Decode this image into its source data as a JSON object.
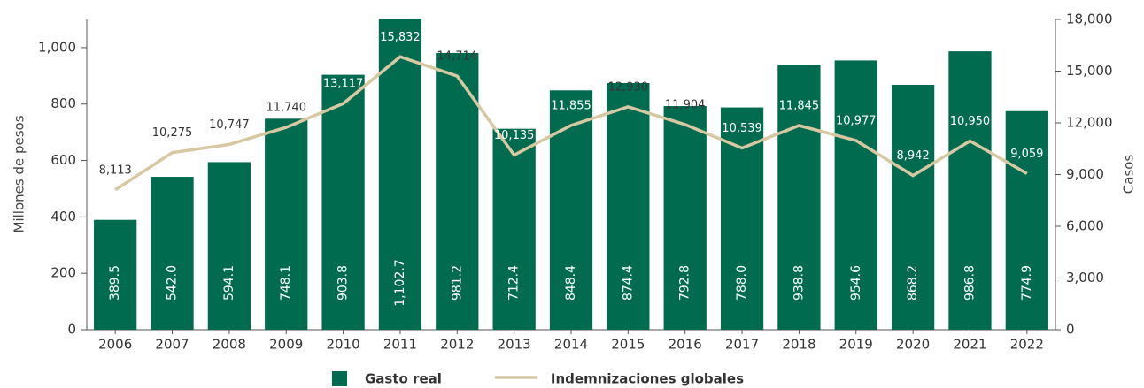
{
  "chart_data": {
    "type": "bar",
    "categories": [
      "2006",
      "2007",
      "2008",
      "2009",
      "2010",
      "2011",
      "2012",
      "2013",
      "2014",
      "2015",
      "2016",
      "2017",
      "2018",
      "2019",
      "2020",
      "2021",
      "2022"
    ],
    "series": [
      {
        "name": "Gasto real",
        "type": "bar",
        "color": "#006b4f",
        "values": [
          389.5,
          542.0,
          594.1,
          748.1,
          903.8,
          1102.7,
          981.2,
          712.4,
          848.4,
          874.4,
          792.8,
          788.0,
          938.8,
          954.6,
          868.2,
          986.8,
          774.9
        ],
        "value_labels": [
          "389.5",
          "542.0",
          "594.1",
          "748.1",
          "903.8",
          "1,102.7",
          "981.2",
          "712.4",
          "848.4",
          "874.4",
          "792.8",
          "788.0",
          "938.8",
          "954.6",
          "868.2",
          "986.8",
          "774.9"
        ]
      },
      {
        "name": "Indemnizaciones globales",
        "type": "line",
        "axis": "y2",
        "color": "#d8c8a2",
        "values": [
          8113,
          10275,
          10747,
          11740,
          13117,
          15832,
          14714,
          10135,
          11855,
          12930,
          11904,
          10539,
          11845,
          10977,
          8942,
          10950,
          9059
        ],
        "value_labels": [
          "8,113",
          "10,275",
          "10,747",
          "11,740",
          "13,117",
          "15,832",
          "14,714",
          "10,135",
          "11,855",
          "12,930",
          "11,904",
          "10,539",
          "11,845",
          "10,977",
          "8,942",
          "10,950",
          "9,059"
        ]
      }
    ],
    "ylabel": "Millones de pesos",
    "y2label": "Casos",
    "ylim": [
      0,
      1100
    ],
    "yticks": [
      0,
      200,
      400,
      600,
      800,
      {
        "value": 1000,
        "label": "1,000"
      }
    ],
    "y2lim": [
      0,
      18000
    ],
    "y2ticks": [
      0,
      {
        "value": 3000,
        "label": "3,000"
      },
      {
        "value": 6000,
        "label": "6,000"
      },
      {
        "value": 9000,
        "label": "9,000"
      },
      {
        "value": 12000,
        "label": "12,000"
      },
      {
        "value": 15000,
        "label": "15,000"
      },
      {
        "value": 18000,
        "label": "18,000"
      }
    ],
    "legend": "bottom"
  }
}
